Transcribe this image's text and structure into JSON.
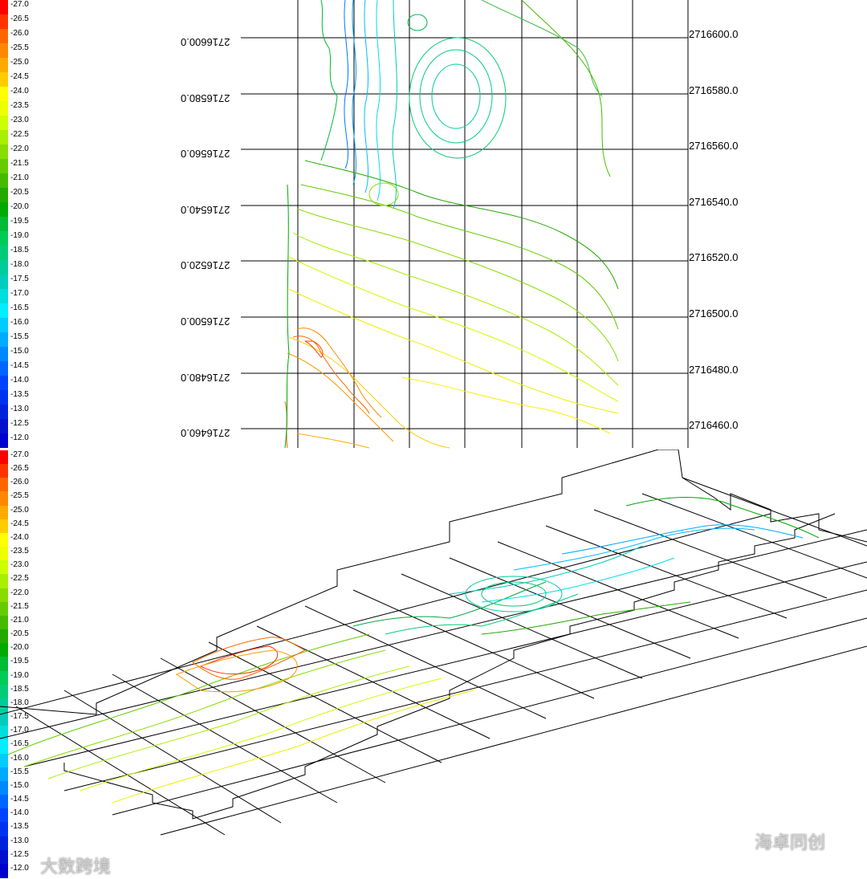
{
  "legend_top": {
    "labels": [
      "-27.0",
      "-26.5",
      "-26.0",
      "-25.5",
      "-25.0",
      "-24.5",
      "-24.0",
      "-23.5",
      "-23.0",
      "-22.5",
      "-22.0",
      "-21.5",
      "-21.0",
      "-20.5",
      "-20.0",
      "-19.5",
      "-19.0",
      "-18.5",
      "-18.0",
      "-17.5",
      "-17.0",
      "-16.5",
      "-16.0",
      "-15.5",
      "-15.0",
      "-14.5",
      "-14.0",
      "-13.5",
      "-13.0",
      "-12.5",
      "-12.0"
    ],
    "colors": [
      "#ff0000",
      "#ff3300",
      "#ff6600",
      "#ff8800",
      "#ffaa00",
      "#ffcc00",
      "#ffff00",
      "#eeff00",
      "#ccff00",
      "#aaee00",
      "#88dd00",
      "#66cc00",
      "#44bb00",
      "#22aa00",
      "#00aa00",
      "#00bb33",
      "#00cc55",
      "#00cc77",
      "#00cc99",
      "#00ccbb",
      "#00dddd",
      "#00eeff",
      "#00ccff",
      "#00aaff",
      "#0088ff",
      "#0066ff",
      "#0044ff",
      "#0033ee",
      "#0022dd",
      "#0011cc",
      "#0000cc"
    ]
  },
  "legend_bottom": {
    "labels": [
      "-27.0",
      "-26.5",
      "-26.0",
      "-25.5",
      "-25.0",
      "-24.5",
      "-24.0",
      "-23.5",
      "-23.0",
      "-22.5",
      "-22.0",
      "-21.5",
      "-21.0",
      "-20.5",
      "-20.0",
      "-19.5",
      "-19.0",
      "-18.5",
      "-18.0",
      "-17.5",
      "-17.0",
      "-16.5",
      "-16.0",
      "-15.5",
      "-15.0",
      "-14.5",
      "-14.0",
      "-13.5",
      "-13.0",
      "-12.5",
      "-12.0"
    ]
  },
  "northings": [
    "2716600.0",
    "2716580.0",
    "2716560.0",
    "2716540.0",
    "2716520.0",
    "2716500.0",
    "2716480.0",
    "2716460.0"
  ],
  "watermark_left": "大数跨境",
  "watermark_right": "海卓同创"
}
